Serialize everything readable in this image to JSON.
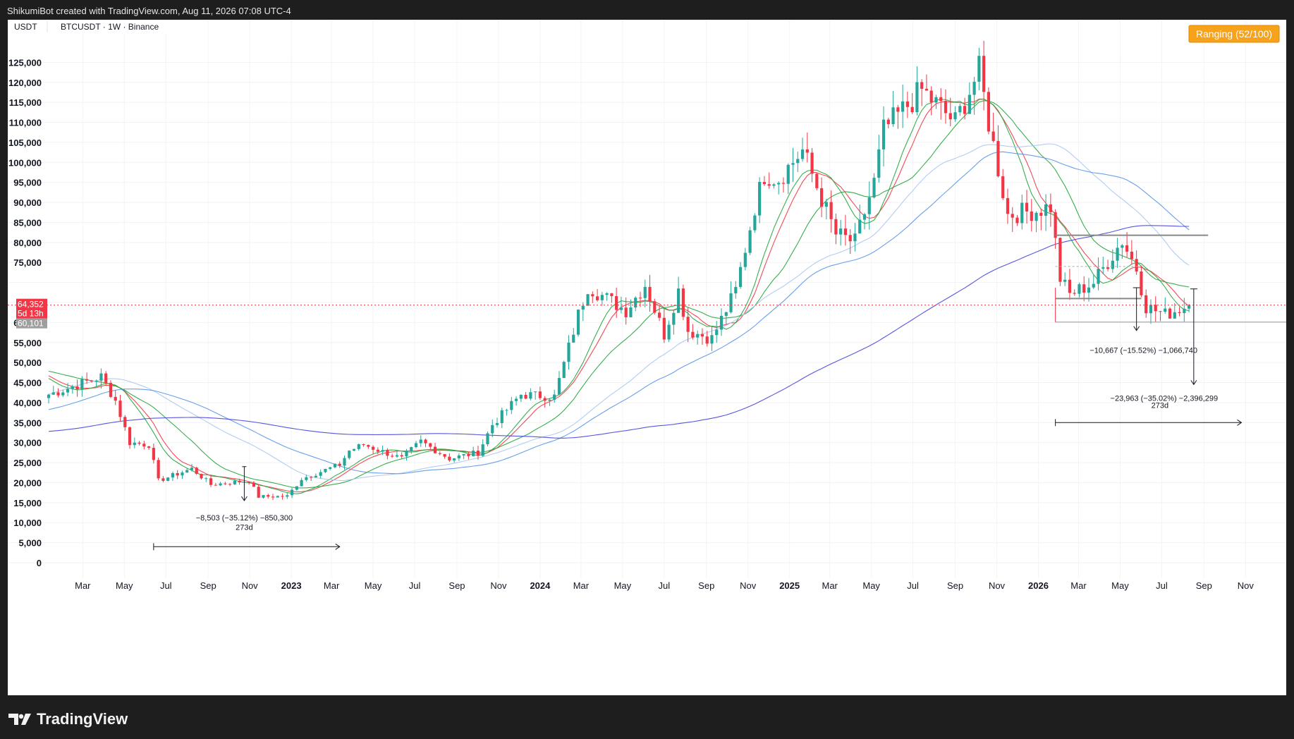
{
  "header": {
    "caption": "ShikumiBot created with TradingView.com, Aug 11, 2026 07:08 UTC-4"
  },
  "legend": {
    "currency": "USDT",
    "symbol": "BTCUSDT · 1W · Binance"
  },
  "status": {
    "label": "Ranging  (52/100)"
  },
  "price_tags": {
    "last": "64,352",
    "countdown": "5d 13h",
    "level": "60,101"
  },
  "brand": {
    "name": "TradingView"
  },
  "colors": {
    "up": "#26a69a",
    "down": "#f23645",
    "ema_fast": "#f23645",
    "ema_green": "#22a63a",
    "ma_light": "#a8c8f0",
    "ma_mid": "#5a96e6",
    "ma_slow": "#4444dd",
    "status_bg": "#f7a21b"
  },
  "chart_data": {
    "type": "candlestick",
    "title": "BTCUSDT · 1W · Binance",
    "ylim": [
      0,
      130000
    ],
    "y_ticks": [
      0,
      5000,
      10000,
      15000,
      20000,
      25000,
      30000,
      35000,
      40000,
      45000,
      50000,
      55000,
      60000,
      65000,
      70000,
      75000,
      80000,
      85000,
      90000,
      95000,
      100000,
      105000,
      110000,
      115000,
      120000,
      125000
    ],
    "y_tick_labels": [
      "0",
      "5,000",
      "10,000",
      "15,000",
      "20,000",
      "25,000",
      "30,000",
      "35,000",
      "40,000",
      "45,000",
      "50,000",
      "55,000",
      "60,000",
      "",
      "",
      "75,000",
      "80,000",
      "85,000",
      "90,000",
      "95,000",
      "100,000",
      "105,000",
      "110,000",
      "115,000",
      "120,000",
      "125,000"
    ],
    "x_ticks": [
      {
        "label": "Mar",
        "date": "2022-03-01"
      },
      {
        "label": "May",
        "date": "2022-05-01"
      },
      {
        "label": "Jul",
        "date": "2022-07-01"
      },
      {
        "label": "Sep",
        "date": "2022-09-01"
      },
      {
        "label": "Nov",
        "date": "2022-11-01"
      },
      {
        "label": "2023",
        "date": "2023-01-01",
        "bold": true
      },
      {
        "label": "Mar",
        "date": "2023-03-01"
      },
      {
        "label": "May",
        "date": "2023-05-01"
      },
      {
        "label": "Jul",
        "date": "2023-07-01"
      },
      {
        "label": "Sep",
        "date": "2023-09-01"
      },
      {
        "label": "Nov",
        "date": "2023-11-01"
      },
      {
        "label": "2024",
        "date": "2024-01-01",
        "bold": true
      },
      {
        "label": "Mar",
        "date": "2024-03-01"
      },
      {
        "label": "May",
        "date": "2024-05-01"
      },
      {
        "label": "Jul",
        "date": "2024-07-01"
      },
      {
        "label": "Sep",
        "date": "2024-09-01"
      },
      {
        "label": "Nov",
        "date": "2024-11-01"
      },
      {
        "label": "2025",
        "date": "2025-01-01",
        "bold": true
      },
      {
        "label": "Mar",
        "date": "2025-03-01"
      },
      {
        "label": "May",
        "date": "2025-05-01"
      },
      {
        "label": "Jul",
        "date": "2025-07-01"
      },
      {
        "label": "Sep",
        "date": "2025-09-01"
      },
      {
        "label": "Nov",
        "date": "2025-11-01"
      },
      {
        "label": "2026",
        "date": "2026-01-01",
        "bold": true
      },
      {
        "label": "Mar",
        "date": "2026-03-01"
      },
      {
        "label": "May",
        "date": "2026-05-01"
      },
      {
        "label": "Jul",
        "date": "2026-07-01"
      },
      {
        "label": "Sep",
        "date": "2026-09-01"
      },
      {
        "label": "Nov",
        "date": "2026-11-01"
      }
    ],
    "x_range": [
      "2022-01-10",
      "2026-12-10"
    ],
    "last_price": 64352,
    "level_price": 60101,
    "grid": true,
    "anchors": [
      {
        "date": "2022-01-10",
        "price": 42000
      },
      {
        "date": "2022-02-14",
        "price": 44000
      },
      {
        "date": "2022-03-28",
        "price": 46500
      },
      {
        "date": "2022-04-18",
        "price": 40500
      },
      {
        "date": "2022-05-09",
        "price": 30000
      },
      {
        "date": "2022-06-06",
        "price": 29500
      },
      {
        "date": "2022-06-20",
        "price": 20500
      },
      {
        "date": "2022-08-08",
        "price": 23500
      },
      {
        "date": "2022-09-05",
        "price": 19500
      },
      {
        "date": "2022-10-31",
        "price": 20500
      },
      {
        "date": "2022-11-14",
        "price": 16500
      },
      {
        "date": "2022-12-26",
        "price": 16600
      },
      {
        "date": "2023-01-16",
        "price": 21000
      },
      {
        "date": "2023-03-13",
        "price": 24500
      },
      {
        "date": "2023-03-27",
        "price": 28000
      },
      {
        "date": "2023-04-17",
        "price": 29500
      },
      {
        "date": "2023-06-12",
        "price": 26000
      },
      {
        "date": "2023-07-10",
        "price": 30300
      },
      {
        "date": "2023-08-21",
        "price": 26000
      },
      {
        "date": "2023-10-02",
        "price": 27500
      },
      {
        "date": "2023-10-23",
        "price": 34500
      },
      {
        "date": "2023-12-04",
        "price": 42000
      },
      {
        "date": "2024-01-22",
        "price": 41500
      },
      {
        "date": "2024-02-26",
        "price": 62000
      },
      {
        "date": "2024-03-11",
        "price": 69000
      },
      {
        "date": "2024-05-06",
        "price": 63000
      },
      {
        "date": "2024-06-03",
        "price": 69500
      },
      {
        "date": "2024-07-01",
        "price": 57000
      },
      {
        "date": "2024-07-22",
        "price": 68000
      },
      {
        "date": "2024-08-05",
        "price": 58000
      },
      {
        "date": "2024-09-09",
        "price": 56000
      },
      {
        "date": "2024-10-14",
        "price": 68000
      },
      {
        "date": "2024-11-11",
        "price": 89000
      },
      {
        "date": "2024-11-25",
        "price": 97000
      },
      {
        "date": "2024-12-16",
        "price": 96000
      },
      {
        "date": "2025-01-20",
        "price": 103000
      },
      {
        "date": "2025-03-10",
        "price": 82000
      },
      {
        "date": "2025-04-07",
        "price": 80000
      },
      {
        "date": "2025-05-05",
        "price": 95000
      },
      {
        "date": "2025-05-19",
        "price": 108000
      },
      {
        "date": "2025-07-14",
        "price": 118000
      },
      {
        "date": "2025-09-01",
        "price": 110000
      },
      {
        "date": "2025-10-06",
        "price": 123000
      },
      {
        "date": "2025-10-20",
        "price": 110000
      },
      {
        "date": "2025-11-17",
        "price": 87000
      },
      {
        "date": "2025-12-29",
        "price": 88000
      },
      {
        "date": "2026-01-19",
        "price": 89000
      },
      {
        "date": "2026-02-02",
        "price": 71000
      },
      {
        "date": "2026-02-16",
        "price": 67000
      },
      {
        "date": "2026-03-23",
        "price": 70000
      },
      {
        "date": "2026-05-04",
        "price": 80500
      },
      {
        "date": "2026-05-25",
        "price": 73500
      },
      {
        "date": "2026-06-08",
        "price": 64000
      },
      {
        "date": "2026-07-06",
        "price": 62000
      },
      {
        "date": "2026-08-10",
        "price": 64352
      }
    ],
    "moving_averages": [
      {
        "color": "#f23645",
        "period": 12
      },
      {
        "color": "#22a63a",
        "period": 10
      },
      {
        "color": "#22a63a",
        "period": 21
      },
      {
        "color": "#a8c8f0",
        "period": 40
      },
      {
        "color": "#5a96e6",
        "period": 52
      },
      {
        "color": "#4444dd",
        "period": 120
      }
    ],
    "annotations": {
      "m1": {
        "text": "−8,503 (−35.12%) −850,300",
        "from_date": "2022-10-24",
        "from_price": 24000,
        "to_price": 15500
      },
      "m1_days": {
        "text": "273d",
        "from_date": "2022-06-13",
        "to_date": "2023-03-13",
        "price": 4000
      },
      "m2": {
        "text": "−10,667 (−15.52%) −1,066,740",
        "date": "2026-05-25",
        "from_price": 68700,
        "to_price": 58000
      },
      "m3": {
        "text": "−23,963 (−35.02%) −2,396,299",
        "date": "2026-08-17",
        "from_price": 68400,
        "to_price": 44500
      },
      "m3_days": {
        "text": "273d",
        "from_date": "2026-01-26",
        "to_date": "2026-10-26",
        "price": 35000
      },
      "hlines": [
        {
          "from_date": "2026-01-26",
          "to_date": "2026-09-07",
          "price": 81800,
          "color": "#888"
        },
        {
          "from_date": "2026-01-26",
          "to_date": "2026-06-01",
          "price": 66000,
          "color": "#888"
        },
        {
          "from_date": "2026-01-26",
          "to_date": "2026-06-01",
          "price": 74000,
          "color": "#aaa",
          "dash": true
        }
      ],
      "drop_box": {
        "from_date": "2026-01-26",
        "price_top": 68700,
        "price_bottom": 60101
      }
    }
  }
}
